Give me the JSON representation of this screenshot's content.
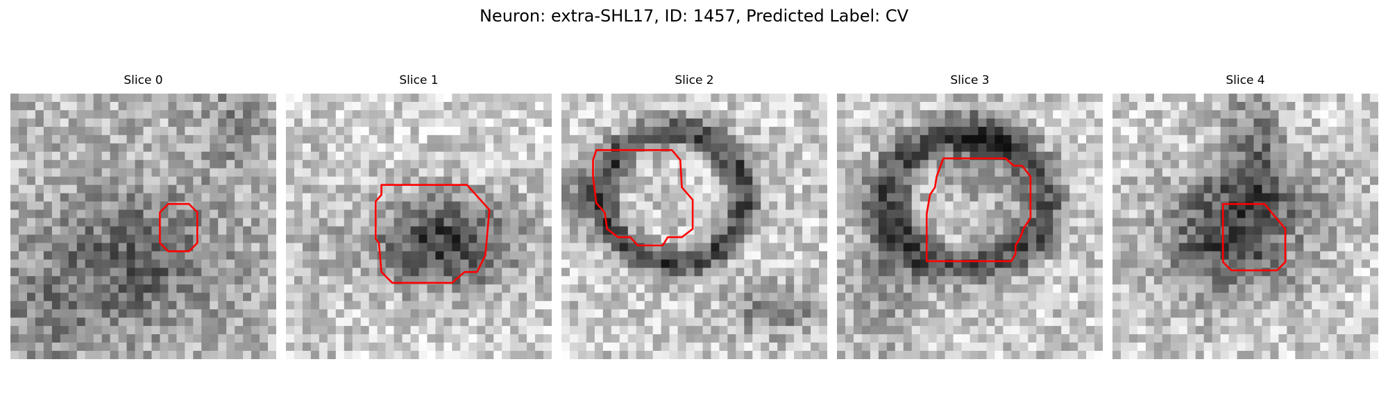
{
  "figure": {
    "title": "Neuron: extra-SHL17, ID: 1457, Predicted Label: CV"
  },
  "colors": {
    "contour": "#ff0000",
    "background": "#ffffff"
  },
  "panels": [
    {
      "title": "Slice 0"
    },
    {
      "title": "Slice 1"
    },
    {
      "title": "Slice 2"
    },
    {
      "title": "Slice 3"
    },
    {
      "title": "Slice 4"
    }
  ]
}
